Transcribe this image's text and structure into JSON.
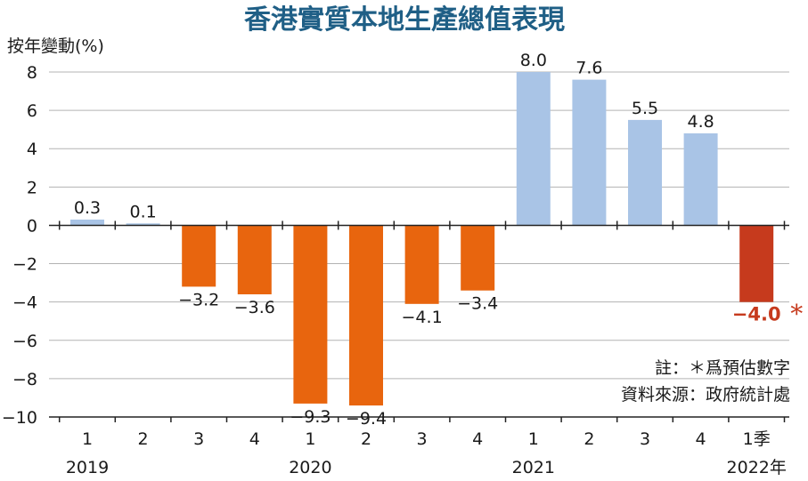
{
  "colors": {
    "background": "#ffffff",
    "title": "#1f5f86",
    "positive": "#a9c4e6",
    "negative": "#e8650e",
    "highlight": "#c63a1d",
    "grid": "#b3b3b3",
    "axis": "#222222"
  },
  "chart_data": {
    "type": "bar",
    "title": "香港實質本地生產總值表現",
    "ylabel": "按年變動(%)",
    "ylim": [
      -10,
      8
    ],
    "yticks": [
      8,
      6,
      4,
      2,
      0,
      -2,
      -4,
      -6,
      -8,
      -10
    ],
    "ytick_labels": [
      "8",
      "6",
      "4",
      "2",
      "0",
      "−2",
      "−4",
      "−6",
      "−8",
      "−10"
    ],
    "grid": "horizontal",
    "categories": [
      "1",
      "2",
      "3",
      "4",
      "1",
      "2",
      "3",
      "4",
      "1",
      "2",
      "3",
      "4",
      "1季"
    ],
    "years": [
      {
        "label": "2019",
        "index": 0
      },
      {
        "label": "2020",
        "index": 4
      },
      {
        "label": "2021",
        "index": 8
      },
      {
        "label": "2022年",
        "index": 12
      }
    ],
    "values": [
      0.3,
      0.1,
      -3.2,
      -3.6,
      -9.3,
      -9.4,
      -4.1,
      -3.4,
      8.0,
      7.6,
      5.5,
      4.8,
      -4.0
    ],
    "value_labels": [
      "0.3",
      "0.1",
      "−3.2",
      "−3.6",
      "−9.3",
      "−9.4",
      "−4.1",
      "−3.4",
      "8.0",
      "7.6",
      "5.5",
      "4.8",
      "−4.0"
    ],
    "highlight_index": 12,
    "highlight_mark": "*",
    "notes": [
      "註：＊爲預估數字",
      "資料來源：政府統計處"
    ]
  }
}
